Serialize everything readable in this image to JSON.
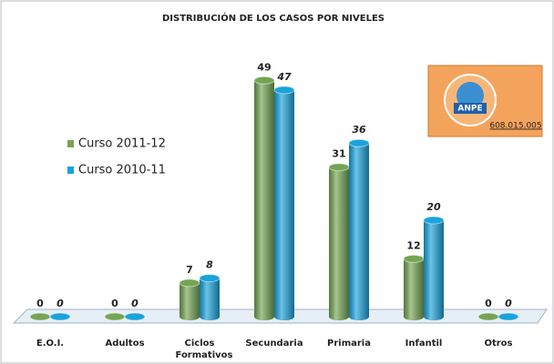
{
  "chart_data": {
    "type": "bar",
    "title": "DISTRIBUCIÓN DE LOS CASOS POR NIVELES",
    "categories": [
      "E.O.I.",
      "Adultos",
      "Ciclos Formativos",
      "Secundaria",
      "Primaria",
      "Infantil",
      "Otros"
    ],
    "series": [
      {
        "name": "Curso 2011-12",
        "color": "#74a553",
        "values": [
          0,
          0,
          7,
          49,
          31,
          12,
          0
        ]
      },
      {
        "name": "Curso 2010-11",
        "color": "#1aa3dc",
        "values": [
          0,
          0,
          8,
          47,
          36,
          20,
          0
        ]
      }
    ],
    "legend": "left",
    "logo": {
      "name": "ANPE",
      "phone": "608.015.005"
    }
  }
}
